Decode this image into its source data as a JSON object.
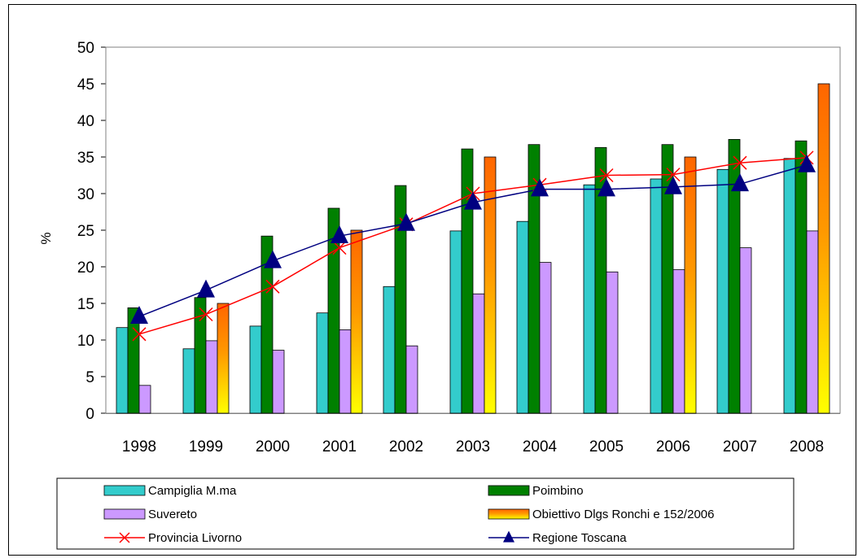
{
  "chart_data": {
    "type": "bar",
    "title": "",
    "xlabel": "",
    "ylabel": "%",
    "ylim": [
      0,
      50
    ],
    "ytick_step": 5,
    "grid": true,
    "legend_position": "bottom",
    "categories": [
      "1998",
      "1999",
      "2000",
      "2001",
      "2002",
      "2003",
      "2004",
      "2005",
      "2006",
      "2007",
      "2008"
    ],
    "series": [
      {
        "name": "Campiglia M.ma",
        "kind": "bar",
        "color": "#33CCCC",
        "values": [
          11.7,
          8.8,
          11.9,
          13.7,
          17.3,
          24.9,
          26.2,
          31.2,
          32.0,
          33.3,
          34.8
        ]
      },
      {
        "name": "Poimbino",
        "kind": "bar",
        "color": "#008000",
        "values": [
          14.4,
          15.8,
          24.2,
          28.0,
          31.1,
          36.1,
          36.7,
          36.3,
          36.7,
          37.4,
          37.2
        ]
      },
      {
        "name": "Suvereto",
        "kind": "bar",
        "color": "#CC99FF",
        "values": [
          3.8,
          9.9,
          8.6,
          11.4,
          9.2,
          16.3,
          20.6,
          19.3,
          19.6,
          22.6,
          24.9
        ]
      },
      {
        "name": "Obiettivo Dlgs Ronchi e 152/2006",
        "kind": "bar",
        "color": "#FF6600",
        "color2": "#FFFF00",
        "values": [
          null,
          15,
          null,
          25,
          null,
          35,
          null,
          null,
          35,
          null,
          45
        ]
      },
      {
        "name": "Provincia Livorno",
        "kind": "line",
        "marker": "x",
        "color": "#FF0000",
        "values": [
          10.8,
          13.5,
          17.3,
          22.6,
          25.8,
          30.0,
          31.2,
          32.5,
          32.6,
          34.2,
          34.9
        ]
      },
      {
        "name": "Regione Toscana",
        "kind": "line",
        "marker": "triangle",
        "color": "#000080",
        "values": [
          13.2,
          16.8,
          20.8,
          24.2,
          25.9,
          28.8,
          30.6,
          30.6,
          30.9,
          31.3,
          33.9
        ]
      }
    ]
  }
}
